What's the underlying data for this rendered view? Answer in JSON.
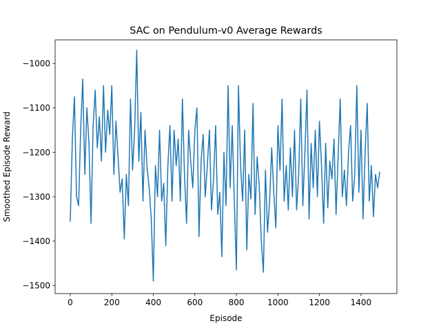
{
  "chart_data": {
    "type": "line",
    "title": "SAC on Pendulum-v0 Average Rewards",
    "xlabel": "Episode",
    "ylabel": "Smoothed Episode Reward",
    "xlim": [
      -73,
      1573
    ],
    "ylim": [
      -1518,
      -947
    ],
    "xticks": [
      0,
      200,
      400,
      600,
      800,
      1000,
      1200,
      1400
    ],
    "yticks": [
      -1500,
      -1400,
      -1300,
      -1200,
      -1100,
      -1000
    ],
    "xtick_labels": [
      "0",
      "200",
      "400",
      "600",
      "800",
      "1000",
      "1200",
      "1400"
    ],
    "ytick_labels": [
      "−1500",
      "−1400",
      "−1300",
      "−1200",
      "−1100",
      "−1000"
    ],
    "grid": false,
    "legend": null,
    "colors": {
      "line": "#1f77b4",
      "axes": "#000000",
      "background": "#ffffff"
    },
    "series": [
      {
        "x": [
          0,
          10,
          20,
          30,
          40,
          50,
          60,
          70,
          80,
          90,
          100,
          110,
          120,
          130,
          140,
          150,
          160,
          170,
          180,
          190,
          200,
          210,
          220,
          230,
          240,
          250,
          260,
          270,
          280,
          290,
          300,
          310,
          320,
          330,
          340,
          350,
          360,
          370,
          380,
          390,
          400,
          410,
          420,
          430,
          440,
          450,
          460,
          470,
          480,
          490,
          500,
          510,
          520,
          530,
          540,
          550,
          560,
          570,
          580,
          590,
          600,
          610,
          620,
          630,
          640,
          650,
          660,
          670,
          680,
          690,
          700,
          710,
          720,
          730,
          740,
          750,
          760,
          770,
          780,
          790,
          800,
          810,
          820,
          830,
          840,
          850,
          860,
          870,
          880,
          890,
          900,
          910,
          920,
          930,
          940,
          950,
          960,
          970,
          980,
          990,
          1000,
          1010,
          1020,
          1030,
          1040,
          1050,
          1060,
          1070,
          1080,
          1090,
          1100,
          1110,
          1120,
          1130,
          1140,
          1150,
          1160,
          1170,
          1180,
          1190,
          1200,
          1210,
          1220,
          1230,
          1240,
          1250,
          1260,
          1270,
          1280,
          1290,
          1300,
          1310,
          1320,
          1330,
          1340,
          1350,
          1360,
          1370,
          1380,
          1390,
          1400,
          1410,
          1420,
          1430,
          1440,
          1450,
          1460,
          1470,
          1480,
          1490
        ],
        "values": [
          -1355,
          -1170,
          -1075,
          -1300,
          -1320,
          -1150,
          -1035,
          -1250,
          -1100,
          -1180,
          -1360,
          -1140,
          -1060,
          -1190,
          -1120,
          -1220,
          -1050,
          -1200,
          -1105,
          -1160,
          -1050,
          -1250,
          -1130,
          -1210,
          -1290,
          -1260,
          -1395,
          -1250,
          -1320,
          -1080,
          -1240,
          -1150,
          -970,
          -1220,
          -1110,
          -1310,
          -1150,
          -1235,
          -1280,
          -1350,
          -1490,
          -1230,
          -1300,
          -1150,
          -1310,
          -1270,
          -1410,
          -1230,
          -1140,
          -1310,
          -1150,
          -1230,
          -1170,
          -1310,
          -1080,
          -1250,
          -1360,
          -1150,
          -1220,
          -1280,
          -1150,
          -1100,
          -1390,
          -1220,
          -1160,
          -1300,
          -1230,
          -1150,
          -1330,
          -1260,
          -1140,
          -1340,
          -1290,
          -1435,
          -1200,
          -1320,
          -1050,
          -1280,
          -1140,
          -1310,
          -1465,
          -1050,
          -1230,
          -1310,
          -1150,
          -1420,
          -1250,
          -1305,
          -1090,
          -1340,
          -1210,
          -1275,
          -1400,
          -1470,
          -1240,
          -1380,
          -1310,
          -1190,
          -1290,
          -1370,
          -1140,
          -1240,
          -1080,
          -1310,
          -1230,
          -1330,
          -1190,
          -1300,
          -1150,
          -1330,
          -1250,
          -1080,
          -1320,
          -1200,
          -1060,
          -1350,
          -1180,
          -1280,
          -1150,
          -1300,
          -1130,
          -1230,
          -1360,
          -1180,
          -1325,
          -1220,
          -1260,
          -1170,
          -1340,
          -1210,
          -1080,
          -1300,
          -1240,
          -1320,
          -1200,
          -1140,
          -1310,
          -1250,
          -1050,
          -1290,
          -1150,
          -1350,
          -1200,
          -1090,
          -1310,
          -1230,
          -1345,
          -1250,
          -1280,
          -1245
        ]
      }
    ]
  }
}
